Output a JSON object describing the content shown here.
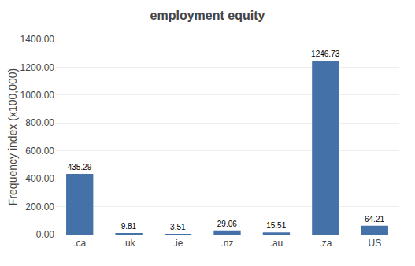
{
  "chart_data": {
    "type": "bar",
    "title": "employment equity",
    "categories": [
      ".ca",
      ".uk",
      ".ie",
      ".nz",
      ".au",
      ".za",
      "US"
    ],
    "values": [
      435.29,
      9.81,
      3.51,
      29.06,
      15.51,
      1246.73,
      64.21
    ],
    "color": "#4472a8",
    "ylabel": "Frequency index (x100,000)",
    "ylim": [
      0,
      1400
    ],
    "yticks": [
      {
        "value": 0,
        "label": "0.00"
      },
      {
        "value": 200,
        "label": "200.00"
      },
      {
        "value": 400,
        "label": "400.00"
      },
      {
        "value": 600,
        "label": "600.00"
      },
      {
        "value": 800,
        "label": "800.00"
      },
      {
        "value": 1000,
        "label": "1000.00"
      },
      {
        "value": 1200,
        "label": "1200.00"
      },
      {
        "value": 1400,
        "label": "1400.00"
      }
    ],
    "grid": true,
    "data_labels": true
  }
}
